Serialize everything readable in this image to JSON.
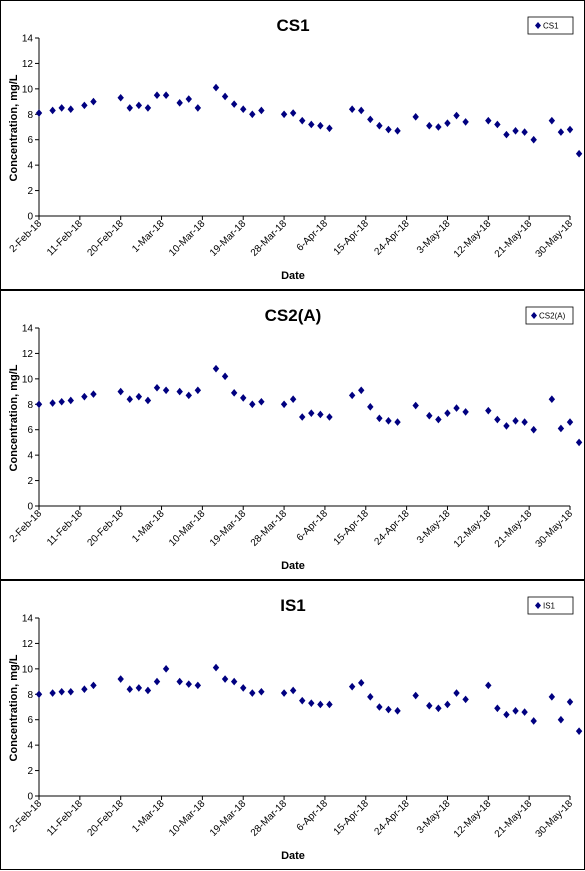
{
  "chart_data": [
    {
      "type": "scatter",
      "title": "CS1",
      "xlabel": "Date",
      "ylabel": "Concentration, mg/L",
      "ylim": [
        0,
        14
      ],
      "yticks": [
        0,
        2,
        4,
        6,
        8,
        10,
        12,
        14
      ],
      "xlim": [
        "2018-02-02",
        "2018-05-30"
      ],
      "xtick_labels": [
        "2-Feb-18",
        "11-Feb-18",
        "20-Feb-18",
        "1-Mar-18",
        "10-Mar-18",
        "19-Mar-18",
        "28-Mar-18",
        "6-Apr-18",
        "15-Apr-18",
        "24-Apr-18",
        "3-May-18",
        "12-May-18",
        "21-May-18",
        "30-May-18"
      ],
      "grid": false,
      "legend_position": "top-right",
      "series": [
        {
          "name": "CS1",
          "color": "#000080",
          "marker": "diamond",
          "points": [
            {
              "x": "2018-02-02",
              "y": 8.1
            },
            {
              "x": "2018-02-05",
              "y": 8.3
            },
            {
              "x": "2018-02-07",
              "y": 8.5
            },
            {
              "x": "2018-02-09",
              "y": 8.4
            },
            {
              "x": "2018-02-12",
              "y": 8.7
            },
            {
              "x": "2018-02-14",
              "y": 9.0
            },
            {
              "x": "2018-02-20",
              "y": 9.3
            },
            {
              "x": "2018-02-22",
              "y": 8.5
            },
            {
              "x": "2018-02-24",
              "y": 8.7
            },
            {
              "x": "2018-02-26",
              "y": 8.5
            },
            {
              "x": "2018-02-28",
              "y": 9.5
            },
            {
              "x": "2018-03-02",
              "y": 9.5
            },
            {
              "x": "2018-03-05",
              "y": 8.9
            },
            {
              "x": "2018-03-07",
              "y": 9.2
            },
            {
              "x": "2018-03-09",
              "y": 8.5
            },
            {
              "x": "2018-03-13",
              "y": 10.1
            },
            {
              "x": "2018-03-15",
              "y": 9.4
            },
            {
              "x": "2018-03-17",
              "y": 8.8
            },
            {
              "x": "2018-03-19",
              "y": 8.4
            },
            {
              "x": "2018-03-21",
              "y": 8.0
            },
            {
              "x": "2018-03-23",
              "y": 8.3
            },
            {
              "x": "2018-03-28",
              "y": 8.0
            },
            {
              "x": "2018-03-30",
              "y": 8.1
            },
            {
              "x": "2018-04-01",
              "y": 7.5
            },
            {
              "x": "2018-04-03",
              "y": 7.2
            },
            {
              "x": "2018-04-05",
              "y": 7.1
            },
            {
              "x": "2018-04-07",
              "y": 6.9
            },
            {
              "x": "2018-04-12",
              "y": 8.4
            },
            {
              "x": "2018-04-14",
              "y": 8.3
            },
            {
              "x": "2018-04-16",
              "y": 7.6
            },
            {
              "x": "2018-04-18",
              "y": 7.1
            },
            {
              "x": "2018-04-20",
              "y": 6.8
            },
            {
              "x": "2018-04-22",
              "y": 6.7
            },
            {
              "x": "2018-04-26",
              "y": 7.8
            },
            {
              "x": "2018-04-29",
              "y": 7.1
            },
            {
              "x": "2018-05-01",
              "y": 7.0
            },
            {
              "x": "2018-05-03",
              "y": 7.3
            },
            {
              "x": "2018-05-05",
              "y": 7.9
            },
            {
              "x": "2018-05-07",
              "y": 7.4
            },
            {
              "x": "2018-05-12",
              "y": 7.5
            },
            {
              "x": "2018-05-14",
              "y": 7.2
            },
            {
              "x": "2018-05-16",
              "y": 6.4
            },
            {
              "x": "2018-05-18",
              "y": 6.7
            },
            {
              "x": "2018-05-20",
              "y": 6.6
            },
            {
              "x": "2018-05-22",
              "y": 6.0
            },
            {
              "x": "2018-05-26",
              "y": 7.5
            },
            {
              "x": "2018-05-28",
              "y": 6.6
            },
            {
              "x": "2018-05-30",
              "y": 6.8
            },
            {
              "x": "2018-06-01",
              "y": 4.9
            },
            {
              "x": "2018-06-03",
              "y": 5.8
            }
          ]
        }
      ]
    },
    {
      "type": "scatter",
      "title": "CS2(A)",
      "xlabel": "Date",
      "ylabel": "Concentration, mg/L",
      "ylim": [
        0,
        14
      ],
      "yticks": [
        0,
        2,
        4,
        6,
        8,
        10,
        12,
        14
      ],
      "xlim": [
        "2018-02-02",
        "2018-05-30"
      ],
      "xtick_labels": [
        "2-Feb-18",
        "11-Feb-18",
        "20-Feb-18",
        "1-Mar-18",
        "10-Mar-18",
        "19-Mar-18",
        "28-Mar-18",
        "6-Apr-18",
        "15-Apr-18",
        "24-Apr-18",
        "3-May-18",
        "12-May-18",
        "21-May-18",
        "30-May-18"
      ],
      "grid": false,
      "legend_position": "top-right",
      "series": [
        {
          "name": "CS2(A)",
          "color": "#000080",
          "marker": "diamond",
          "points": [
            {
              "x": "2018-02-02",
              "y": 8.0
            },
            {
              "x": "2018-02-05",
              "y": 8.1
            },
            {
              "x": "2018-02-07",
              "y": 8.2
            },
            {
              "x": "2018-02-09",
              "y": 8.3
            },
            {
              "x": "2018-02-12",
              "y": 8.6
            },
            {
              "x": "2018-02-14",
              "y": 8.8
            },
            {
              "x": "2018-02-20",
              "y": 9.0
            },
            {
              "x": "2018-02-22",
              "y": 8.4
            },
            {
              "x": "2018-02-24",
              "y": 8.6
            },
            {
              "x": "2018-02-26",
              "y": 8.3
            },
            {
              "x": "2018-02-28",
              "y": 9.3
            },
            {
              "x": "2018-03-02",
              "y": 9.1
            },
            {
              "x": "2018-03-05",
              "y": 9.0
            },
            {
              "x": "2018-03-07",
              "y": 8.7
            },
            {
              "x": "2018-03-09",
              "y": 9.1
            },
            {
              "x": "2018-03-13",
              "y": 10.8
            },
            {
              "x": "2018-03-15",
              "y": 10.2
            },
            {
              "x": "2018-03-17",
              "y": 8.9
            },
            {
              "x": "2018-03-19",
              "y": 8.5
            },
            {
              "x": "2018-03-21",
              "y": 8.0
            },
            {
              "x": "2018-03-23",
              "y": 8.2
            },
            {
              "x": "2018-03-28",
              "y": 8.0
            },
            {
              "x": "2018-03-30",
              "y": 8.4
            },
            {
              "x": "2018-04-01",
              "y": 7.0
            },
            {
              "x": "2018-04-03",
              "y": 7.3
            },
            {
              "x": "2018-04-05",
              "y": 7.2
            },
            {
              "x": "2018-04-07",
              "y": 7.0
            },
            {
              "x": "2018-04-12",
              "y": 8.7
            },
            {
              "x": "2018-04-14",
              "y": 9.1
            },
            {
              "x": "2018-04-16",
              "y": 7.8
            },
            {
              "x": "2018-04-18",
              "y": 6.9
            },
            {
              "x": "2018-04-20",
              "y": 6.7
            },
            {
              "x": "2018-04-22",
              "y": 6.6
            },
            {
              "x": "2018-04-26",
              "y": 7.9
            },
            {
              "x": "2018-04-29",
              "y": 7.1
            },
            {
              "x": "2018-05-01",
              "y": 6.8
            },
            {
              "x": "2018-05-03",
              "y": 7.3
            },
            {
              "x": "2018-05-05",
              "y": 7.7
            },
            {
              "x": "2018-05-07",
              "y": 7.4
            },
            {
              "x": "2018-05-12",
              "y": 7.5
            },
            {
              "x": "2018-05-14",
              "y": 6.8
            },
            {
              "x": "2018-05-16",
              "y": 6.3
            },
            {
              "x": "2018-05-18",
              "y": 6.7
            },
            {
              "x": "2018-05-20",
              "y": 6.6
            },
            {
              "x": "2018-05-22",
              "y": 6.0
            },
            {
              "x": "2018-05-26",
              "y": 8.4
            },
            {
              "x": "2018-05-28",
              "y": 6.1
            },
            {
              "x": "2018-05-30",
              "y": 6.6
            },
            {
              "x": "2018-06-01",
              "y": 5.0
            },
            {
              "x": "2018-06-03",
              "y": 5.2
            }
          ]
        }
      ]
    },
    {
      "type": "scatter",
      "title": "IS1",
      "xlabel": "Date",
      "ylabel": "Concentration, mg/L",
      "ylim": [
        0,
        14
      ],
      "yticks": [
        0,
        2,
        4,
        6,
        8,
        10,
        12,
        14
      ],
      "xlim": [
        "2018-02-02",
        "2018-05-30"
      ],
      "xtick_labels": [
        "2-Feb-18",
        "11-Feb-18",
        "20-Feb-18",
        "1-Mar-18",
        "10-Mar-18",
        "19-Mar-18",
        "28-Mar-18",
        "6-Apr-18",
        "15-Apr-18",
        "24-Apr-18",
        "3-May-18",
        "12-May-18",
        "21-May-18",
        "30-May-18"
      ],
      "grid": false,
      "legend_position": "top-right",
      "series": [
        {
          "name": "IS1",
          "color": "#000080",
          "marker": "diamond",
          "points": [
            {
              "x": "2018-02-02",
              "y": 8.0
            },
            {
              "x": "2018-02-05",
              "y": 8.1
            },
            {
              "x": "2018-02-07",
              "y": 8.2
            },
            {
              "x": "2018-02-09",
              "y": 8.2
            },
            {
              "x": "2018-02-12",
              "y": 8.4
            },
            {
              "x": "2018-02-14",
              "y": 8.7
            },
            {
              "x": "2018-02-20",
              "y": 9.2
            },
            {
              "x": "2018-02-22",
              "y": 8.4
            },
            {
              "x": "2018-02-24",
              "y": 8.5
            },
            {
              "x": "2018-02-26",
              "y": 8.3
            },
            {
              "x": "2018-02-28",
              "y": 9.0
            },
            {
              "x": "2018-03-02",
              "y": 10.0
            },
            {
              "x": "2018-03-05",
              "y": 9.0
            },
            {
              "x": "2018-03-07",
              "y": 8.8
            },
            {
              "x": "2018-03-09",
              "y": 8.7
            },
            {
              "x": "2018-03-13",
              "y": 10.1
            },
            {
              "x": "2018-03-15",
              "y": 9.2
            },
            {
              "x": "2018-03-17",
              "y": 9.0
            },
            {
              "x": "2018-03-19",
              "y": 8.5
            },
            {
              "x": "2018-03-21",
              "y": 8.1
            },
            {
              "x": "2018-03-23",
              "y": 8.2
            },
            {
              "x": "2018-03-28",
              "y": 8.1
            },
            {
              "x": "2018-03-30",
              "y": 8.3
            },
            {
              "x": "2018-04-01",
              "y": 7.5
            },
            {
              "x": "2018-04-03",
              "y": 7.3
            },
            {
              "x": "2018-04-05",
              "y": 7.2
            },
            {
              "x": "2018-04-07",
              "y": 7.2
            },
            {
              "x": "2018-04-12",
              "y": 8.6
            },
            {
              "x": "2018-04-14",
              "y": 8.9
            },
            {
              "x": "2018-04-16",
              "y": 7.8
            },
            {
              "x": "2018-04-18",
              "y": 7.0
            },
            {
              "x": "2018-04-20",
              "y": 6.8
            },
            {
              "x": "2018-04-22",
              "y": 6.7
            },
            {
              "x": "2018-04-26",
              "y": 7.9
            },
            {
              "x": "2018-04-29",
              "y": 7.1
            },
            {
              "x": "2018-05-01",
              "y": 6.9
            },
            {
              "x": "2018-05-03",
              "y": 7.2
            },
            {
              "x": "2018-05-05",
              "y": 8.1
            },
            {
              "x": "2018-05-07",
              "y": 7.6
            },
            {
              "x": "2018-05-12",
              "y": 8.7
            },
            {
              "x": "2018-05-14",
              "y": 6.9
            },
            {
              "x": "2018-05-16",
              "y": 6.4
            },
            {
              "x": "2018-05-18",
              "y": 6.7
            },
            {
              "x": "2018-05-20",
              "y": 6.6
            },
            {
              "x": "2018-05-22",
              "y": 5.9
            },
            {
              "x": "2018-05-26",
              "y": 7.8
            },
            {
              "x": "2018-05-28",
              "y": 6.0
            },
            {
              "x": "2018-05-30",
              "y": 7.4
            },
            {
              "x": "2018-06-01",
              "y": 5.1
            },
            {
              "x": "2018-06-03",
              "y": 5.3
            }
          ]
        }
      ]
    }
  ]
}
